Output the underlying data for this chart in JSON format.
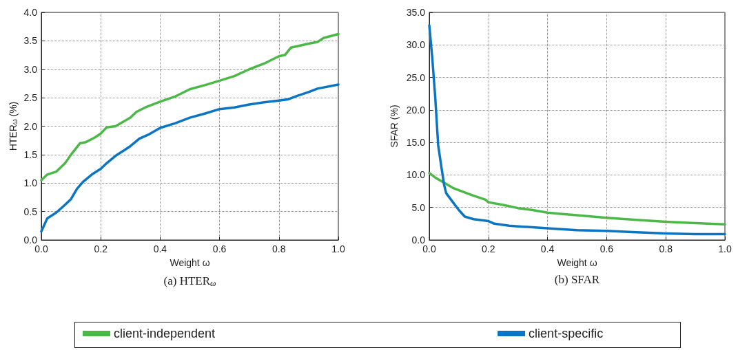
{
  "chart_data": [
    {
      "type": "line",
      "xlabel": "Weight ω",
      "ylabel": "HTER$_{ω}$ (%)",
      "annotations": [
        "(a) HTER$_{ω}$"
      ],
      "legend": "bottom",
      "grid": true,
      "line_style": "solid",
      "marker": "none",
      "xlim": [
        0,
        1
      ],
      "xticks": [
        {
          "value": 0,
          "label": "0.0"
        },
        {
          "value": 0.2,
          "label": "0.2"
        },
        {
          "value": 0.4,
          "label": "0.4"
        },
        {
          "value": 0.6,
          "label": "0.6"
        },
        {
          "value": 0.8,
          "label": "0.8"
        },
        {
          "value": 1,
          "label": "1.0"
        }
      ],
      "ylim": [
        0,
        4
      ],
      "yticks": [
        {
          "value": 0,
          "label": "0.0"
        },
        {
          "value": 0.5,
          "label": "0.5"
        },
        {
          "value": 1,
          "label": "1.0"
        },
        {
          "value": 1.5,
          "label": "1.5"
        },
        {
          "value": 2,
          "label": "2.0"
        },
        {
          "value": 2.5,
          "label": "2.5"
        },
        {
          "value": 3,
          "label": "3.0"
        },
        {
          "value": 3.5,
          "label": "3.5"
        },
        {
          "value": 4,
          "label": "4.0"
        }
      ],
      "series": [
        {
          "name": "client-independent",
          "color": "#4cb848",
          "x": [
            0,
            0.02,
            0.05,
            0.08,
            0.1,
            0.13,
            0.15,
            0.18,
            0.2,
            0.22,
            0.25,
            0.3,
            0.32,
            0.35,
            0.4,
            0.45,
            0.5,
            0.55,
            0.6,
            0.65,
            0.7,
            0.75,
            0.8,
            0.82,
            0.84,
            0.9,
            0.93,
            0.95,
            1
          ],
          "values": [
            1.05,
            1.15,
            1.2,
            1.35,
            1.5,
            1.7,
            1.72,
            1.8,
            1.87,
            1.98,
            2.0,
            2.15,
            2.25,
            2.33,
            2.43,
            2.52,
            2.65,
            2.72,
            2.8,
            2.88,
            3.0,
            3.1,
            3.23,
            3.25,
            3.38,
            3.45,
            3.48,
            3.55,
            3.62
          ]
        },
        {
          "name": "client-specific",
          "color": "#0a75c2",
          "x": [
            0,
            0.02,
            0.05,
            0.08,
            0.1,
            0.12,
            0.14,
            0.17,
            0.2,
            0.22,
            0.25,
            0.28,
            0.3,
            0.33,
            0.36,
            0.4,
            0.45,
            0.5,
            0.55,
            0.6,
            0.65,
            0.7,
            0.75,
            0.8,
            0.83,
            0.86,
            0.9,
            0.93,
            1
          ],
          "values": [
            0.15,
            0.38,
            0.48,
            0.62,
            0.72,
            0.9,
            1.02,
            1.15,
            1.25,
            1.35,
            1.48,
            1.58,
            1.65,
            1.78,
            1.85,
            1.97,
            2.05,
            2.15,
            2.22,
            2.3,
            2.33,
            2.38,
            2.42,
            2.45,
            2.47,
            2.53,
            2.6,
            2.66,
            2.73
          ]
        }
      ]
    },
    {
      "type": "line",
      "xlabel": "Weight ω",
      "ylabel": "SFAR (%)",
      "annotations": [
        "(b) SFAR"
      ],
      "grid": true,
      "line_style": "solid",
      "marker": "none",
      "xlim": [
        0,
        1
      ],
      "xticks": [
        {
          "value": 0,
          "label": "0.0"
        },
        {
          "value": 0.2,
          "label": "0.2"
        },
        {
          "value": 0.4,
          "label": "0.4"
        },
        {
          "value": 0.6,
          "label": "0.6"
        },
        {
          "value": 0.8,
          "label": "0.8"
        },
        {
          "value": 1,
          "label": "1.0"
        }
      ],
      "ylim": [
        0,
        35
      ],
      "yticks": [
        {
          "value": 0,
          "label": "0.0"
        },
        {
          "value": 5,
          "label": "5.0"
        },
        {
          "value": 10,
          "label": "10.0"
        },
        {
          "value": 15,
          "label": "15.0"
        },
        {
          "value": 20,
          "label": "20.0"
        },
        {
          "value": 25,
          "label": "25.0"
        },
        {
          "value": 30,
          "label": "30.0"
        },
        {
          "value": 35,
          "label": "35.0"
        }
      ],
      "series": [
        {
          "color": "#4cb848",
          "x": [
            0,
            0.02,
            0.05,
            0.08,
            0.12,
            0.15,
            0.19,
            0.2,
            0.25,
            0.3,
            0.35,
            0.4,
            0.45,
            0.5,
            0.6,
            0.7,
            0.8,
            0.9,
            1
          ],
          "values": [
            10.3,
            9.6,
            8.8,
            8.0,
            7.3,
            6.8,
            6.2,
            5.8,
            5.4,
            4.9,
            4.6,
            4.2,
            4.0,
            3.8,
            3.4,
            3.1,
            2.8,
            2.6,
            2.4
          ]
        },
        {
          "color": "#0a75c2",
          "x": [
            0,
            0.01,
            0.02,
            0.03,
            0.04,
            0.05,
            0.057,
            0.08,
            0.1,
            0.12,
            0.15,
            0.2,
            0.22,
            0.27,
            0.3,
            0.4,
            0.5,
            0.6,
            0.7,
            0.8,
            0.9,
            1
          ],
          "values": [
            33.0,
            28,
            22,
            14.6,
            11.5,
            8.5,
            7.2,
            5.8,
            4.6,
            3.6,
            3.2,
            2.9,
            2.5,
            2.2,
            2.1,
            1.8,
            1.5,
            1.4,
            1.2,
            1.0,
            0.9,
            0.9
          ]
        }
      ]
    }
  ]
}
